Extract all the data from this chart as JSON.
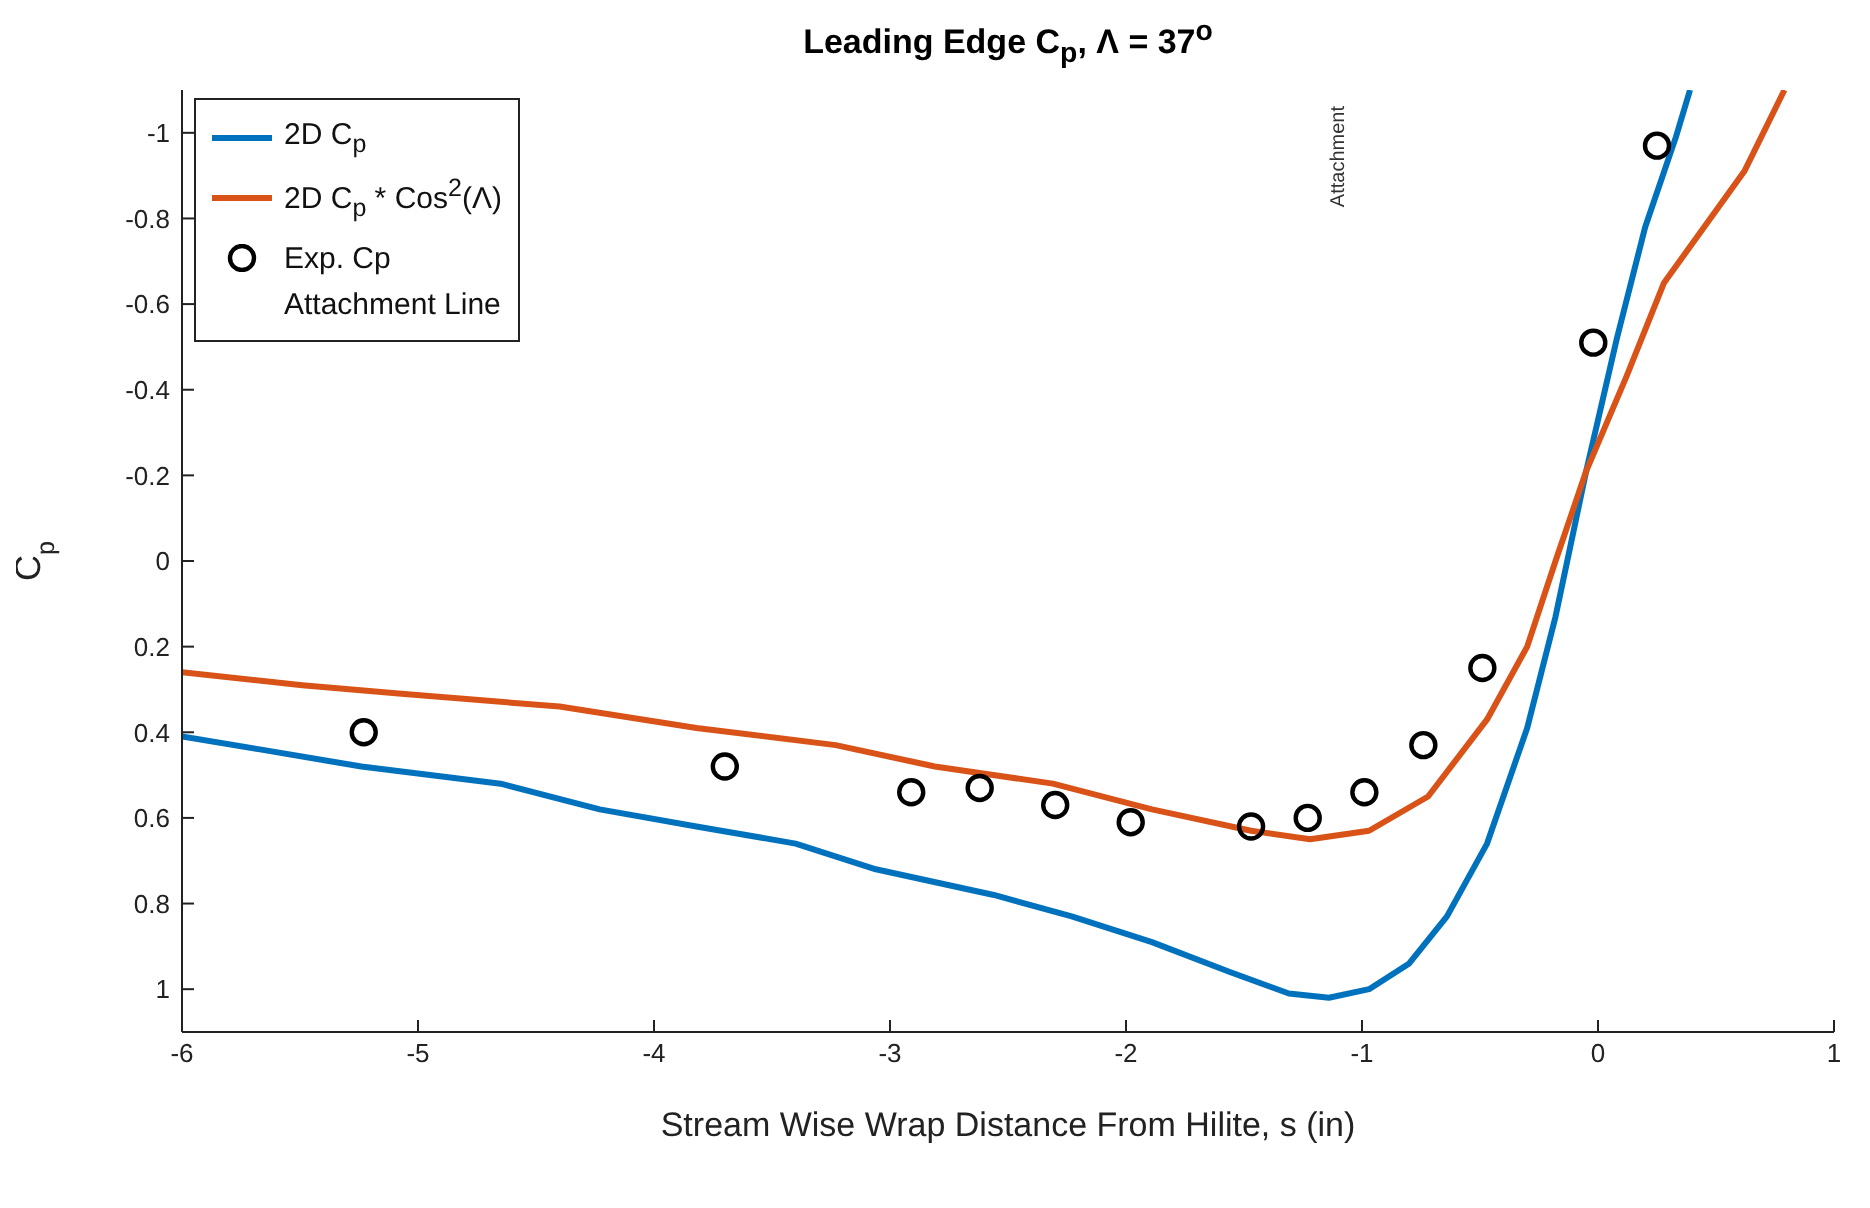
{
  "chart_data": {
    "type": "line",
    "title": "Leading Edge C$_{p}$, Λ = 37$^{o}$",
    "xlabel": "Stream Wise Wrap Distance From Hilite, s (in)",
    "ylabel": "C$_{p}$",
    "xlim": [
      -6,
      1
    ],
    "xticks": [
      -6,
      -5,
      -4,
      -3,
      -2,
      -1,
      0,
      1
    ],
    "ylim": [
      1.1,
      -1.1
    ],
    "yticks": [
      -1,
      -0.8,
      -0.6,
      -0.4,
      -0.2,
      0,
      0.2,
      0.4,
      0.6,
      0.8,
      1
    ],
    "grid": false,
    "legend": "top left",
    "annotations": [
      "Attachment Line",
      "Attachment"
    ],
    "series": [
      {
        "name": "2D C$_{p}$",
        "color": "#0072bd",
        "x": [
          -6,
          -5.67,
          -5.24,
          -4.65,
          -4.23,
          -3.82,
          -3.4,
          -3.06,
          -2.56,
          -2.23,
          -1.89,
          -1.56,
          -1.31,
          -1.14,
          -0.97,
          -0.8,
          -0.64,
          -0.47,
          -0.3,
          -0.18,
          -0.05,
          0.08,
          0.2,
          0.33,
          0.39
        ],
        "values": [
          0.41,
          0.44,
          0.48,
          0.52,
          0.58,
          0.62,
          0.66,
          0.72,
          0.78,
          0.83,
          0.89,
          0.96,
          1.01,
          1.02,
          1,
          0.94,
          0.83,
          0.66,
          0.39,
          0.13,
          -0.21,
          -0.52,
          -0.78,
          -0.99,
          -1.1
        ]
      },
      {
        "name": "2D C$_{p}$ * Cos$^{2}$(Λ)",
        "color": "#d95319",
        "x": [
          -6,
          -5.49,
          -5.07,
          -4.4,
          -3.82,
          -3.23,
          -2.81,
          -2.31,
          -1.89,
          -1.47,
          -1.22,
          -0.97,
          -0.72,
          -0.47,
          -0.3,
          -0.18,
          -0.05,
          0.12,
          0.28,
          0.45,
          0.62,
          0.79
        ],
        "values": [
          0.26,
          0.29,
          0.31,
          0.34,
          0.39,
          0.43,
          0.48,
          0.52,
          0.58,
          0.63,
          0.65,
          0.63,
          0.55,
          0.37,
          0.2,
          0,
          -0.21,
          -0.43,
          -0.65,
          -0.78,
          -0.91,
          -1.1
        ]
      },
      {
        "name": "Exp. Cp",
        "type": "scatter",
        "color": "#000000",
        "marker": "circle",
        "x": [
          -5.23,
          -3.7,
          -2.91,
          -2.62,
          -2.3,
          -1.98,
          -1.47,
          -1.23,
          -0.99,
          -0.74,
          -0.49,
          -0.02,
          0.25
        ],
        "values": [
          0.4,
          0.48,
          0.54,
          0.53,
          0.57,
          0.61,
          0.62,
          0.6,
          0.54,
          0.43,
          0.25,
          -0.51,
          -0.97
        ]
      }
    ]
  }
}
